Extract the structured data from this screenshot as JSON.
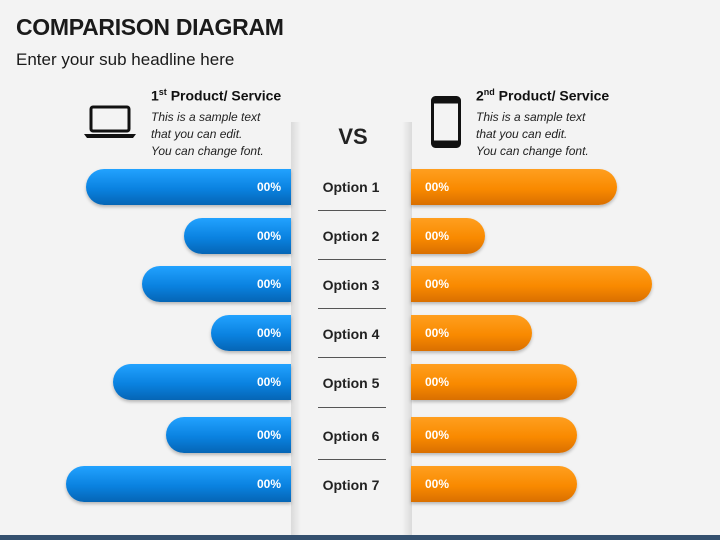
{
  "title": "COMPARISON DIAGRAM",
  "subtitle": "Enter your sub headline here",
  "vs": "VS",
  "left": {
    "ordinal": "1",
    "ordinal_suffix": "st",
    "title": " Product/ Service",
    "icon": "laptop-icon",
    "desc": [
      "This is a sample text",
      "that you can edit.",
      "You can change font."
    ],
    "color": "#0a82e0"
  },
  "right": {
    "ordinal": "2",
    "ordinal_suffix": "nd",
    "title": " Product/ Service",
    "icon": "smartphone-icon",
    "desc": [
      "This is a sample text",
      "that you can edit.",
      "You can change font."
    ],
    "color": "#f98a00"
  },
  "rows": [
    {
      "label": "Option 1",
      "left_value": "00%",
      "right_value": "00%"
    },
    {
      "label": "Option 2",
      "left_value": "00%",
      "right_value": "00%"
    },
    {
      "label": "Option 3",
      "left_value": "00%",
      "right_value": "00%"
    },
    {
      "label": "Option 4",
      "left_value": "00%",
      "right_value": "00%"
    },
    {
      "label": "Option 5",
      "left_value": "00%",
      "right_value": "00%"
    },
    {
      "label": "Option 6",
      "left_value": "00%",
      "right_value": "00%"
    },
    {
      "label": "Option 7",
      "left_value": "00%",
      "right_value": "00%"
    }
  ]
}
